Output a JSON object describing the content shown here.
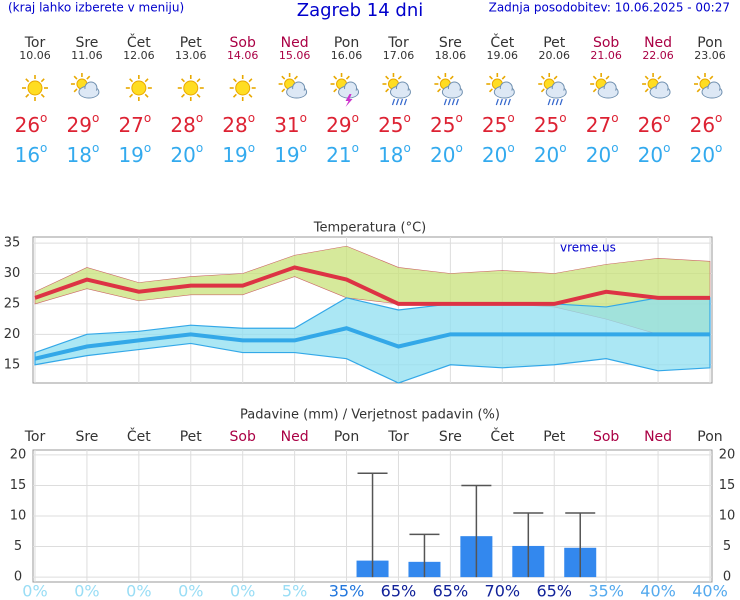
{
  "header": {
    "left": "(kraj lahko izberete v meniju)",
    "title": "Zagreb 14 dni",
    "right": "Zadnja posodobitev: 10.06.2025 - 00:27"
  },
  "degree": "o",
  "days": [
    {
      "name": "Tor",
      "date": "10.06",
      "max": 26,
      "min": 16,
      "icon": "sun",
      "weekend": false
    },
    {
      "name": "Sre",
      "date": "11.06",
      "max": 29,
      "min": 18,
      "icon": "sun-cloud",
      "weekend": false
    },
    {
      "name": "Čet",
      "date": "12.06",
      "max": 27,
      "min": 19,
      "icon": "sun",
      "weekend": false
    },
    {
      "name": "Pet",
      "date": "13.06",
      "max": 28,
      "min": 20,
      "icon": "sun",
      "weekend": false
    },
    {
      "name": "Sob",
      "date": "14.06",
      "max": 28,
      "min": 19,
      "icon": "sun",
      "weekend": true
    },
    {
      "name": "Ned",
      "date": "15.06",
      "max": 31,
      "min": 19,
      "icon": "sun-cloud",
      "weekend": true
    },
    {
      "name": "Pon",
      "date": "16.06",
      "max": 29,
      "min": 21,
      "icon": "storm",
      "weekend": false
    },
    {
      "name": "Tor",
      "date": "17.06",
      "max": 25,
      "min": 18,
      "icon": "rain",
      "weekend": false
    },
    {
      "name": "Sre",
      "date": "18.06",
      "max": 25,
      "min": 20,
      "icon": "rain",
      "weekend": false
    },
    {
      "name": "Čet",
      "date": "19.06",
      "max": 25,
      "min": 20,
      "icon": "rain",
      "weekend": false
    },
    {
      "name": "Pet",
      "date": "20.06",
      "max": 25,
      "min": 20,
      "icon": "rain",
      "weekend": false
    },
    {
      "name": "Sob",
      "date": "21.06",
      "max": 27,
      "min": 20,
      "icon": "sun-cloud",
      "weekend": true
    },
    {
      "name": "Ned",
      "date": "22.06",
      "max": 26,
      "min": 20,
      "icon": "sun-cloud",
      "weekend": true
    },
    {
      "name": "Pon",
      "date": "23.06",
      "max": 26,
      "min": 20,
      "icon": "sun-cloud",
      "weekend": false
    }
  ],
  "chart_data": [
    {
      "type": "line",
      "title": "Temperatura (°C)",
      "watermark": "vreme.us",
      "ylim": [
        12,
        36
      ],
      "yticks": [
        15,
        20,
        25,
        30,
        35
      ],
      "grid": true,
      "series": [
        {
          "name": "max",
          "color": "#dd3344",
          "values": [
            26,
            29,
            27,
            28,
            28,
            31,
            29,
            25,
            25,
            25,
            25,
            27,
            26,
            26
          ],
          "band_upper": [
            27,
            31,
            28.5,
            29.5,
            30,
            33,
            34.5,
            31,
            30,
            30.5,
            30,
            31.5,
            32.5,
            32
          ],
          "band_lower": [
            25,
            27.5,
            25.5,
            26.5,
            26.5,
            29.5,
            26,
            25,
            25,
            25,
            24.5,
            22.5,
            20,
            20
          ],
          "band_color": "#c8e27a"
        },
        {
          "name": "min",
          "color": "#33a8e8",
          "values": [
            16,
            18,
            19,
            20,
            19,
            19,
            21,
            18,
            20,
            20,
            20,
            20,
            20,
            20
          ],
          "band_upper": [
            17,
            20,
            20.5,
            21.5,
            21,
            21,
            26,
            24,
            25,
            25,
            25,
            24.5,
            26,
            26
          ],
          "band_lower": [
            15,
            16.5,
            17.5,
            18.5,
            17,
            17,
            16,
            12,
            15,
            14.5,
            15,
            16,
            14,
            14.5
          ],
          "band_color": "#8fdff0"
        }
      ]
    },
    {
      "type": "bar",
      "title": "Padavine (mm) / Verjetnost padavin (%)",
      "ylim": [
        -0.8,
        20.8
      ],
      "yticks": [
        0,
        5,
        10,
        15,
        20
      ],
      "grid": true,
      "color": "#3388ee",
      "values": [
        0,
        0,
        0,
        0,
        0,
        0,
        2.7,
        2.5,
        6.7,
        5.1,
        4.8,
        0,
        0,
        0
      ],
      "upper": [
        null,
        null,
        null,
        null,
        null,
        null,
        17,
        7,
        15,
        10.5,
        10.5,
        null,
        null,
        null
      ],
      "probability": [
        0,
        0,
        0,
        0,
        0,
        5,
        35,
        65,
        65,
        70,
        65,
        35,
        40,
        40
      ],
      "probability_labels": [
        "0%",
        "0%",
        "0%",
        "0%",
        "0%",
        "5%",
        "35%",
        "65%",
        "65%",
        "70%",
        "65%",
        "35%",
        "40%",
        "40%"
      ],
      "probability_colors": [
        "#99ddf5",
        "#99ddf5",
        "#99ddf5",
        "#99ddf5",
        "#99ddf5",
        "#99ddf5",
        "#2277dd",
        "#112299",
        "#112299",
        "#112299",
        "#112299",
        "#55aaee",
        "#55aaee",
        "#55aaee"
      ]
    }
  ]
}
